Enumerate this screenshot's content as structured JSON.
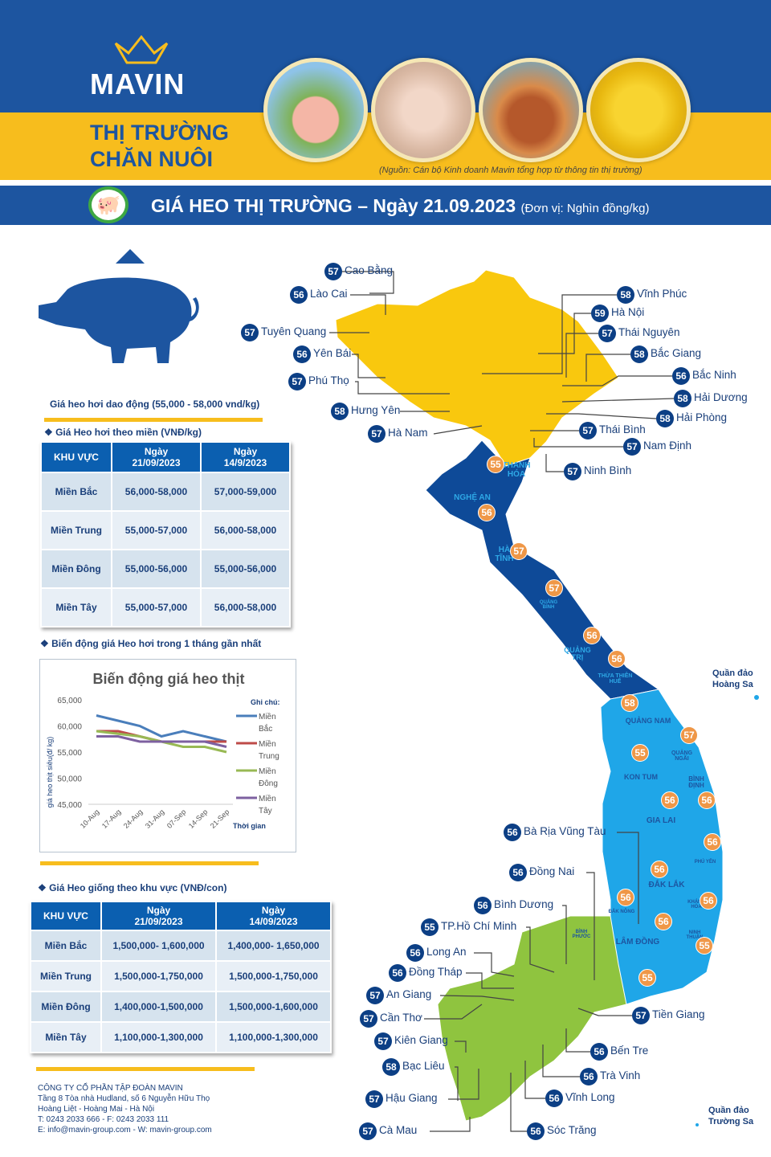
{
  "header": {
    "brand": "MAVIN",
    "title_line1": "THỊ TRƯỜNG",
    "title_line2": "CHĂN NUÔI",
    "source": "(Nguồn: Cán bộ Kinh doanh Mavin tổng hợp từ thông tin thị trường)"
  },
  "banner": {
    "title": "GIÁ HEO THỊ TRƯỜNG – Ngày 21.09.2023",
    "unit": "(Đơn vị: Nghìn đồng/kg)"
  },
  "summary": "Giá heo hơi dao động (55,000 - 58,000 vnd/kg)",
  "live_table": {
    "caption": "Giá Heo hơi theo miền (VNĐ/kg)",
    "headers": [
      "KHU VỰC",
      "Ngày\n21/09/2023",
      "Ngày\n14/9/2023"
    ],
    "rows": [
      [
        "Miền Bắc",
        "56,000-58,000",
        "57,000-59,000"
      ],
      [
        "Miền Trung",
        "55,000-57,000",
        "56,000-58,000"
      ],
      [
        "Miền Đông",
        "55,000-56,000",
        "55,000-56,000"
      ],
      [
        "Miền Tây",
        "55,000-57,000",
        "56,000-58,000"
      ]
    ]
  },
  "chart_caption": "Biến động giá Heo hơi trong 1 tháng gần nhất",
  "chart_data": {
    "type": "line",
    "title": "Biến động giá heo thịt",
    "ylabel": "giá heo thịt siêu(đ/ kg)",
    "xlabel": "Thời gian",
    "legend_title": "Ghi chú:",
    "legend": "right",
    "ylim": [
      45000,
      65000
    ],
    "yticks": [
      "65,000",
      "60,000",
      "55,000",
      "50,000",
      "45,000"
    ],
    "categories": [
      "10-Aug",
      "17-Aug",
      "24-Aug",
      "31-Aug",
      "07-Sep",
      "14-Sep",
      "21-Sep"
    ],
    "series": [
      {
        "name": "Miền Bắc",
        "color": "#4a7ebb",
        "values": [
          62000,
          61000,
          60000,
          58000,
          59000,
          58000,
          57000
        ]
      },
      {
        "name": "Miền Trung",
        "color": "#be4b48",
        "values": [
          59000,
          59000,
          58000,
          57000,
          57000,
          57000,
          57000
        ]
      },
      {
        "name": "Miền Đông",
        "color": "#98b954",
        "values": [
          59000,
          58500,
          58000,
          57000,
          56000,
          56000,
          55000
        ]
      },
      {
        "name": "Miền Tây",
        "color": "#7d60a0",
        "values": [
          58000,
          58000,
          57000,
          57000,
          57000,
          57000,
          56000
        ]
      }
    ]
  },
  "piglet_table": {
    "caption": "Giá Heo giống theo khu vực (VNĐ/con)",
    "headers": [
      "KHU VỰC",
      "Ngày\n21/09/2023",
      "Ngày\n14/09/2023"
    ],
    "rows": [
      [
        "Miền Bắc",
        "1,500,000- 1,600,000",
        "1,400,000- 1,650,000"
      ],
      [
        "Miền Trung",
        "1,500,000-1,750,000",
        "1,500,000-1,750,000"
      ],
      [
        "Miền Đông",
        "1,400,000-1,500,000",
        "1,500,000-1,600,000"
      ],
      [
        "Miền Tây",
        "1,100,000-1,300,000",
        "1,100,000-1,300,000"
      ]
    ]
  },
  "footer": [
    "CÔNG TY CỔ PHẦN TẬP ĐOÀN MAVIN",
    "Tầng 8 Tòa nhà Hudland, số 6 Nguyễn Hữu Thọ",
    "Hoàng Liệt - Hoàng Mai - Hà Nội",
    "T: 0243 2033 666 - F: 0243 2033 111",
    "E: info@mavin-group.com -  W: mavin-group.com"
  ],
  "islands": {
    "hoang_sa": "Quần đảo\nHoàng Sa",
    "truong_sa": "Quần đảo\nTrường Sa"
  },
  "callouts": [
    {
      "v": "57",
      "n": "Cao Bằng"
    },
    {
      "v": "56",
      "n": "Lào Cai"
    },
    {
      "v": "57",
      "n": "Tuyên Quang"
    },
    {
      "v": "56",
      "n": "Yên Bái"
    },
    {
      "v": "57",
      "n": "Phú Thọ"
    },
    {
      "v": "58",
      "n": "Hưng Yên"
    },
    {
      "v": "57",
      "n": "Hà Nam"
    },
    {
      "v": "58",
      "n": "Vĩnh Phúc"
    },
    {
      "v": "59",
      "n": "Hà Nội"
    },
    {
      "v": "57",
      "n": "Thái Nguyên"
    },
    {
      "v": "58",
      "n": "Bắc Giang"
    },
    {
      "v": "56",
      "n": "Bắc Ninh"
    },
    {
      "v": "58",
      "n": "Hải Dương"
    },
    {
      "v": "58",
      "n": "Hải Phòng"
    },
    {
      "v": "57",
      "n": "Thái Bình"
    },
    {
      "v": "57",
      "n": "Nam Định"
    },
    {
      "v": "57",
      "n": "Ninh Bình"
    },
    {
      "v": "56",
      "n": "Bà Rịa Vũng Tàu"
    },
    {
      "v": "56",
      "n": "Đồng Nai"
    },
    {
      "v": "56",
      "n": "Bình Dương"
    },
    {
      "v": "55",
      "n": "TP.Hồ Chí Minh"
    },
    {
      "v": "56",
      "n": "Long An"
    },
    {
      "v": "56",
      "n": "Đồng Tháp"
    },
    {
      "v": "57",
      "n": "An Giang"
    },
    {
      "v": "57",
      "n": "Cần Thơ"
    },
    {
      "v": "57",
      "n": "Kiên Giang"
    },
    {
      "v": "58",
      "n": "Bạc Liêu"
    },
    {
      "v": "57",
      "n": "Hậu Giang"
    },
    {
      "v": "57",
      "n": "Cà Mau"
    },
    {
      "v": "57",
      "n": "Tiền Giang"
    },
    {
      "v": "56",
      "n": "Bến Tre"
    },
    {
      "v": "56",
      "n": "Trà Vinh"
    },
    {
      "v": "56",
      "n": "Vĩnh Long"
    },
    {
      "v": "56",
      "n": "Sóc Trăng"
    }
  ],
  "map_badges": [
    {
      "v": "55",
      "n": "THANH HÓA"
    },
    {
      "v": "56",
      "n": "NGHỆ AN"
    },
    {
      "v": "57",
      "n": "HÀ TĨNH"
    },
    {
      "v": "57",
      "n": "QUẢNG BÌNH"
    },
    {
      "v": "56",
      "n": "QUẢNG TRỊ"
    },
    {
      "v": "56",
      "n": "THỪA THIÊN HUẾ"
    },
    {
      "v": "58",
      "n": "QUẢNG NAM"
    },
    {
      "v": "57",
      "n": "QUẢNG NGÃI"
    },
    {
      "v": "55",
      "n": "KON TUM"
    },
    {
      "v": "56",
      "n": "GIA LAI"
    },
    {
      "v": "56",
      "n": "BÌNH ĐỊNH"
    },
    {
      "v": "56",
      "n": "PHÚ YÊN"
    },
    {
      "v": "56",
      "n": "ĐẮK LẮK"
    },
    {
      "v": "56",
      "n": "KHÁNH HÒA"
    },
    {
      "v": "56",
      "n": "ĐẮK NÔNG"
    },
    {
      "v": "56",
      "n": "LÂM ĐỒNG"
    },
    {
      "v": "55",
      "n": "NINH THUẬN"
    },
    {
      "v": "55",
      "n": "BÌNH PHƯỚC"
    }
  ]
}
